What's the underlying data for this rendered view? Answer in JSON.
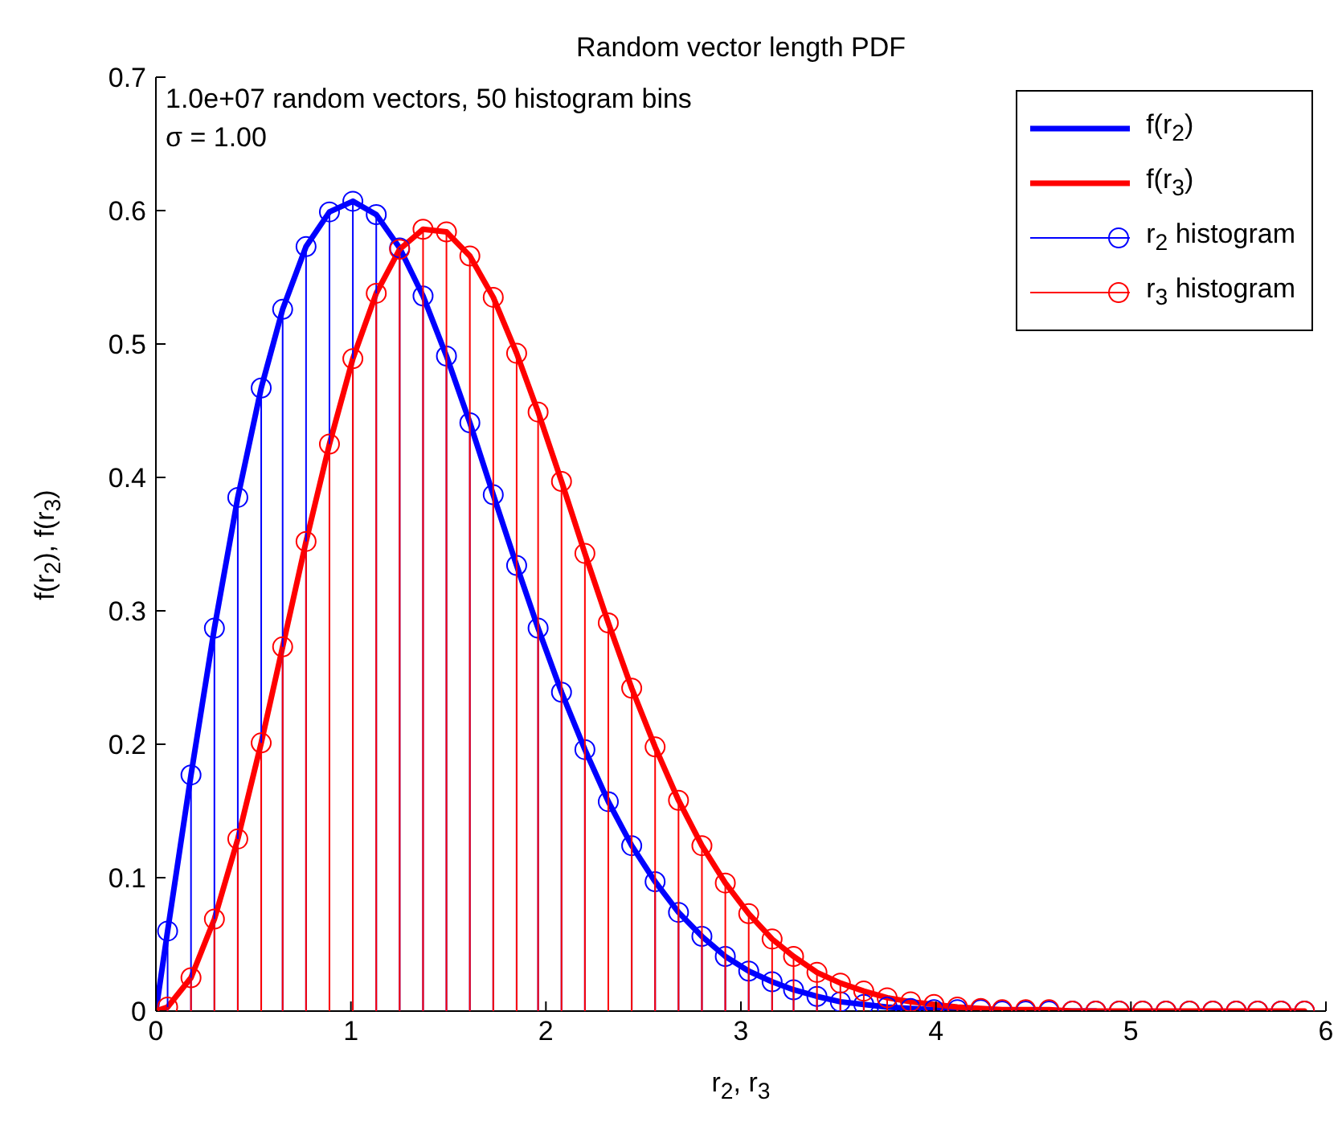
{
  "chart_data": {
    "type": "line",
    "title": "Random vector length PDF",
    "xlabel": "r$_{2}$, r$_{3}$",
    "ylabel": "f(r$_{2}$), f(r$_{3}$)",
    "annotations": [
      "1.0e+07 random vectors, 50 histogram bins",
      "σ = 1.00"
    ],
    "xlim": [
      0,
      6
    ],
    "xticks": [
      0,
      1,
      2,
      3,
      4,
      5,
      6
    ],
    "ylim": [
      0,
      0.7
    ],
    "yticks": [
      0,
      0.1,
      0.2,
      0.3,
      0.4,
      0.5,
      0.6,
      0.7
    ],
    "legend": "top right",
    "series": [
      {
        "name": "f(r$_{2}$)",
        "color": "#0000ff",
        "x": [
          0,
          0.06,
          0.18,
          0.3,
          0.42,
          0.54,
          0.65,
          0.77,
          0.89,
          1.01,
          1.13,
          1.25,
          1.37,
          1.49,
          1.61,
          1.73,
          1.85,
          1.96,
          2.08,
          2.2,
          2.32,
          2.44,
          2.56,
          2.68,
          2.8,
          2.92,
          3.04,
          3.16,
          3.27,
          3.39,
          3.51,
          3.63,
          3.75,
          3.87,
          3.99,
          4.11,
          4.23,
          4.34,
          4.46,
          4.58,
          4.7,
          4.82
        ],
        "values": [
          0,
          0.06,
          0.177,
          0.287,
          0.385,
          0.467,
          0.526,
          0.573,
          0.599,
          0.607,
          0.597,
          0.572,
          0.536,
          0.491,
          0.441,
          0.387,
          0.334,
          0.287,
          0.239,
          0.196,
          0.157,
          0.124,
          0.097,
          0.074,
          0.056,
          0.041,
          0.03,
          0.022,
          0.016,
          0.011,
          0.007,
          0.005,
          0.003,
          0.002,
          0.001,
          0.001,
          0.001,
          0,
          0,
          0,
          0,
          0
        ]
      },
      {
        "name": "f(r$_{3}$)",
        "color": "#ff0000",
        "x": [
          0,
          0.06,
          0.18,
          0.3,
          0.42,
          0.54,
          0.65,
          0.77,
          0.89,
          1.01,
          1.13,
          1.25,
          1.37,
          1.49,
          1.61,
          1.73,
          1.85,
          1.96,
          2.08,
          2.2,
          2.32,
          2.44,
          2.56,
          2.68,
          2.8,
          2.92,
          3.04,
          3.16,
          3.27,
          3.39,
          3.51,
          3.63,
          3.75,
          3.87,
          3.99,
          4.11,
          4.23,
          4.34,
          4.46,
          4.58,
          4.7,
          4.82,
          4.94,
          5.06,
          5.18,
          5.3,
          5.42,
          5.54,
          5.65,
          5.77,
          5.89
        ],
        "values": [
          0,
          0.003,
          0.025,
          0.069,
          0.129,
          0.201,
          0.273,
          0.352,
          0.425,
          0.489,
          0.538,
          0.571,
          0.586,
          0.584,
          0.566,
          0.535,
          0.493,
          0.449,
          0.397,
          0.343,
          0.291,
          0.242,
          0.198,
          0.158,
          0.124,
          0.096,
          0.073,
          0.054,
          0.041,
          0.029,
          0.021,
          0.015,
          0.01,
          0.007,
          0.005,
          0.003,
          0.002,
          0.001,
          0.001,
          0.001,
          0,
          0,
          0,
          0,
          0,
          0,
          0,
          0,
          0,
          0,
          0
        ]
      },
      {
        "name": "r$_{2}$ histogram",
        "type": "lollipop",
        "marker": "circle",
        "color": "#0000ff",
        "x": [
          0.06,
          0.18,
          0.3,
          0.42,
          0.54,
          0.65,
          0.77,
          0.89,
          1.01,
          1.13,
          1.25,
          1.37,
          1.49,
          1.61,
          1.73,
          1.85,
          1.96,
          2.08,
          2.2,
          2.32,
          2.44,
          2.56,
          2.68,
          2.8,
          2.92,
          3.04,
          3.16,
          3.27,
          3.39,
          3.51,
          3.63,
          3.75,
          3.87,
          3.99,
          4.11,
          4.23,
          4.34,
          4.46,
          4.58,
          4.7,
          4.82,
          4.94,
          5.06,
          5.18,
          5.3,
          5.42,
          5.54,
          5.65,
          5.77,
          5.89
        ],
        "values": [
          0.06,
          0.177,
          0.287,
          0.385,
          0.467,
          0.526,
          0.573,
          0.599,
          0.607,
          0.597,
          0.572,
          0.536,
          0.491,
          0.441,
          0.387,
          0.334,
          0.287,
          0.239,
          0.196,
          0.157,
          0.124,
          0.097,
          0.074,
          0.056,
          0.041,
          0.03,
          0.022,
          0.016,
          0.011,
          0.007,
          0.005,
          0.003,
          0.002,
          0.001,
          0.001,
          0.001,
          0,
          0,
          0,
          0,
          0,
          0,
          0,
          0,
          0,
          0,
          0,
          0,
          0,
          0
        ]
      },
      {
        "name": "r$_{3}$ histogram",
        "type": "lollipop",
        "marker": "circle",
        "color": "#ff0000",
        "x": [
          0.06,
          0.18,
          0.3,
          0.42,
          0.54,
          0.65,
          0.77,
          0.89,
          1.01,
          1.13,
          1.25,
          1.37,
          1.49,
          1.61,
          1.73,
          1.85,
          1.96,
          2.08,
          2.2,
          2.32,
          2.44,
          2.56,
          2.68,
          2.8,
          2.92,
          3.04,
          3.16,
          3.27,
          3.39,
          3.51,
          3.63,
          3.75,
          3.87,
          3.99,
          4.11,
          4.23,
          4.34,
          4.46,
          4.58,
          4.7,
          4.82,
          4.94,
          5.06,
          5.18,
          5.3,
          5.42,
          5.54,
          5.65,
          5.77,
          5.89
        ],
        "values": [
          0.003,
          0.025,
          0.069,
          0.129,
          0.201,
          0.273,
          0.352,
          0.425,
          0.489,
          0.538,
          0.571,
          0.586,
          0.584,
          0.566,
          0.535,
          0.493,
          0.449,
          0.397,
          0.343,
          0.291,
          0.242,
          0.198,
          0.158,
          0.124,
          0.096,
          0.073,
          0.054,
          0.041,
          0.029,
          0.021,
          0.015,
          0.01,
          0.007,
          0.005,
          0.003,
          0.002,
          0.001,
          0.001,
          0.001,
          0,
          0,
          0,
          0,
          0,
          0,
          0,
          0,
          0,
          0,
          0
        ]
      }
    ]
  }
}
